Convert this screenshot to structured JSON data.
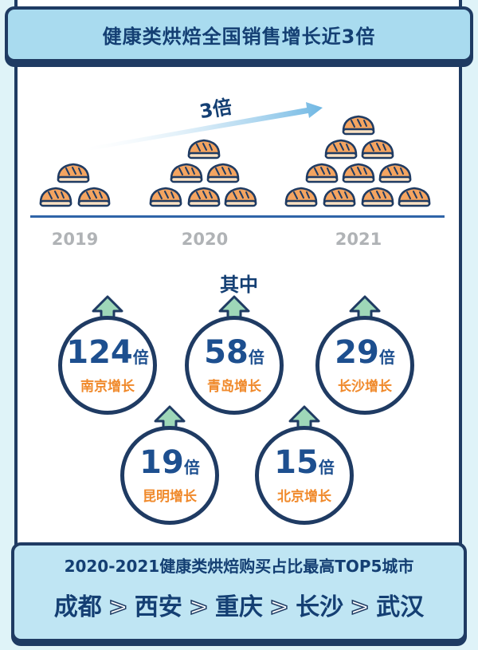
{
  "title": "健康类烘焙全国销售增长近3倍",
  "growth_label": "3倍",
  "years": [
    "2019",
    "2020",
    "2021"
  ],
  "subhead": "其中",
  "cities": [
    {
      "value": "124",
      "unit": "倍",
      "label": "南京增长"
    },
    {
      "value": "58",
      "unit": "倍",
      "label": "青岛增长"
    },
    {
      "value": "29",
      "unit": "倍",
      "label": "长沙增长"
    },
    {
      "value": "19",
      "unit": "倍",
      "label": "昆明增长"
    },
    {
      "value": "15",
      "unit": "倍",
      "label": "北京增长"
    }
  ],
  "bottom": {
    "title": "2020-2021健康类烘焙购买占比最高TOP5城市",
    "ranking": [
      "成都",
      "西安",
      "重庆",
      "长沙",
      "武汉"
    ],
    "separator": ">"
  },
  "colors": {
    "navy": "#1f3b63",
    "blue": "#1d4f8f",
    "orange": "#f08a2c",
    "light_blue": "#a9dbef",
    "arrow_green": "#9ed7b8"
  }
}
